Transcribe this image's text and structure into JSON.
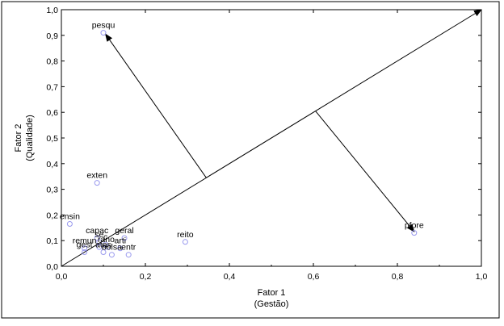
{
  "chart_data": {
    "type": "scatter",
    "title": "",
    "xlabel": [
      "Fator 1",
      "(Gestão)"
    ],
    "ylabel": [
      "Fator 2",
      "(Qualidade)"
    ],
    "xlim": [
      0.0,
      1.0
    ],
    "ylim": [
      0.0,
      1.0
    ],
    "xticks": [
      "0,0",
      "0,2",
      "0,4",
      "0,6",
      "0,8",
      "1,0"
    ],
    "yticks": [
      "0,0",
      "0,1",
      "0,2",
      "0,3",
      "0,4",
      "0,5",
      "0,6",
      "0,7",
      "0,8",
      "0,9",
      "1,0"
    ],
    "grid": false,
    "point_color": "#9999ee",
    "points": [
      {
        "label": "pesqu",
        "x": 0.1,
        "y": 0.91
      },
      {
        "label": "exten",
        "x": 0.085,
        "y": 0.325
      },
      {
        "label": "ensin",
        "x": 0.02,
        "y": 0.165
      },
      {
        "label": "capac",
        "x": 0.085,
        "y": 0.11
      },
      {
        "label": "geral",
        "x": 0.15,
        "y": 0.11
      },
      {
        "label": "se­",
        "x": 0.09,
        "y": 0.095
      },
      {
        "label": "c",
        "x": 0.105,
        "y": 0.085
      },
      {
        "label": "r",
        "x": 0.09,
        "y": 0.075
      },
      {
        "label": "ano",
        "x": 0.11,
        "y": 0.075
      },
      {
        "label": "remun",
        "x": 0.055,
        "y": 0.07
      },
      {
        "label": "arti",
        "x": 0.14,
        "y": 0.07
      },
      {
        "label": "gest",
        "x": 0.055,
        "y": 0.055
      },
      {
        "label": "atas",
        "x": 0.1,
        "y": 0.055
      },
      {
        "label": "bolsa",
        "x": 0.12,
        "y": 0.045
      },
      {
        "label": "entr",
        "x": 0.16,
        "y": 0.045
      },
      {
        "label": "reito",
        "x": 0.295,
        "y": 0.095
      },
      {
        "label": "pfore",
        "x": 0.84,
        "y": 0.13
      }
    ],
    "lines": [
      {
        "name": "diagonal",
        "from": [
          0.0,
          0.0
        ],
        "to": [
          1.0,
          1.0
        ],
        "arrow": true
      },
      {
        "name": "to-pesqu",
        "from": [
          0.345,
          0.345
        ],
        "to": [
          0.105,
          0.905
        ],
        "arrow": true
      },
      {
        "name": "to-pfore",
        "from": [
          0.605,
          0.605
        ],
        "to": [
          0.84,
          0.135
        ],
        "arrow": true
      }
    ]
  }
}
